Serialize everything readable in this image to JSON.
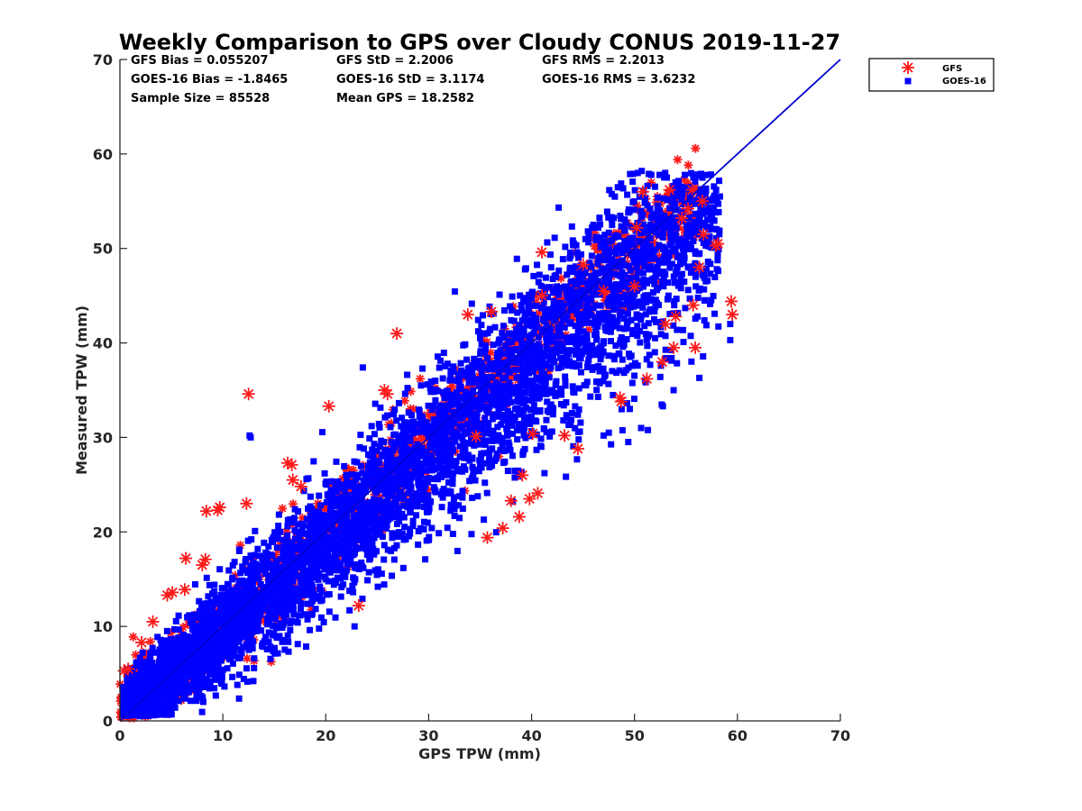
{
  "chart_data": {
    "type": "scatter",
    "title": "Weekly Comparison to GPS over Cloudy CONUS 2019-11-27",
    "xlabel": "GPS TPW (mm)",
    "ylabel": "Measured TPW (mm)",
    "xlim": [
      0,
      70
    ],
    "ylim": [
      0,
      70
    ],
    "xticks": [
      "0",
      "10",
      "20",
      "30",
      "40",
      "50",
      "60",
      "70"
    ],
    "yticks": [
      "0",
      "10",
      "20",
      "30",
      "40",
      "50",
      "60",
      "70"
    ],
    "grid": false,
    "legend_position": "outside top-right",
    "stats": [
      "GFS Bias = 0.055207",
      "GFS StD = 2.2006",
      "GFS RMS = 2.2013",
      "GOES-16 Bias = -1.8465",
      "GOES-16 StD = 3.1174",
      "GOES-16 RMS = 3.6232",
      "Sample Size = 85528",
      "Mean GPS = 18.2582"
    ],
    "reference_line": {
      "name": "1:1",
      "x": [
        0,
        70
      ],
      "y": [
        0,
        70
      ],
      "color": "#0000cc"
    },
    "series": [
      {
        "name": "GFS",
        "marker": "asterisk",
        "color": "#ff1a1a",
        "points": [
          [
            0.4,
            5.3
          ],
          [
            0.8,
            5.5
          ],
          [
            2.1,
            8.3
          ],
          [
            3.2,
            10.5
          ],
          [
            4.6,
            13.3
          ],
          [
            5.1,
            13.6
          ],
          [
            6.3,
            13.9
          ],
          [
            6.4,
            17.2
          ],
          [
            8.0,
            16.5
          ],
          [
            8.3,
            17.1
          ],
          [
            8.4,
            22.2
          ],
          [
            9.7,
            22.6
          ],
          [
            9.5,
            22.3
          ],
          [
            12.3,
            23.0
          ],
          [
            12.5,
            34.6
          ],
          [
            16.3,
            27.3
          ],
          [
            16.7,
            27.1
          ],
          [
            16.8,
            25.5
          ],
          [
            17.6,
            24.8
          ],
          [
            20.3,
            33.3
          ],
          [
            23.2,
            12.2
          ],
          [
            25.7,
            35.0
          ],
          [
            26.0,
            34.6
          ],
          [
            26.9,
            41.0
          ],
          [
            33.8,
            43.0
          ],
          [
            34.6,
            30.1
          ],
          [
            35.7,
            19.4
          ],
          [
            36.1,
            43.3
          ],
          [
            37.2,
            20.4
          ],
          [
            38.0,
            23.3
          ],
          [
            38.8,
            21.6
          ],
          [
            39.1,
            26.0
          ],
          [
            39.8,
            23.5
          ],
          [
            40.1,
            30.4
          ],
          [
            40.6,
            24.1
          ],
          [
            41.0,
            49.6
          ],
          [
            41.0,
            45.0
          ],
          [
            43.2,
            30.2
          ],
          [
            44.5,
            28.8
          ],
          [
            45.0,
            48.3
          ],
          [
            47.0,
            45.5
          ],
          [
            48.6,
            34.2
          ],
          [
            48.7,
            33.8
          ],
          [
            50.0,
            46.0
          ],
          [
            50.2,
            52.2
          ],
          [
            50.8,
            56.0
          ],
          [
            51.2,
            36.2
          ],
          [
            52.7,
            38.0
          ],
          [
            53.0,
            42.0
          ],
          [
            53.4,
            56.2
          ],
          [
            53.8,
            39.5
          ],
          [
            54.0,
            42.8
          ],
          [
            54.6,
            53.2
          ],
          [
            55.2,
            54.2
          ],
          [
            55.6,
            56.2
          ],
          [
            55.9,
            39.5
          ],
          [
            55.7,
            44.0
          ],
          [
            56.3,
            48.0
          ],
          [
            56.7,
            51.5
          ],
          [
            56.6,
            55.0
          ],
          [
            57.9,
            50.3
          ],
          [
            58.1,
            50.5
          ],
          [
            59.4,
            44.4
          ],
          [
            59.5,
            43.0
          ]
        ]
      },
      {
        "name": "GOES-16",
        "marker": "square",
        "color": "#0000ff",
        "points": [
          [
            12.6,
            30.2
          ],
          [
            12.7,
            30.0
          ],
          [
            22.8,
            10.0
          ],
          [
            23.6,
            37.4
          ],
          [
            32.4,
            37.5
          ],
          [
            35.0,
            40.5
          ],
          [
            36.3,
            43.1
          ],
          [
            39.0,
            44.0
          ],
          [
            44.0,
            35.4
          ],
          [
            47.0,
            30.2
          ],
          [
            47.5,
            30.5
          ],
          [
            46.0,
            52.5
          ],
          [
            50.7,
            58.2
          ],
          [
            52.5,
            36.4
          ],
          [
            53.3,
            45.0
          ],
          [
            53.8,
            35.0
          ],
          [
            54.1,
            55.8
          ],
          [
            55.1,
            50.5
          ],
          [
            55.7,
            57.8
          ],
          [
            56.8,
            52.5
          ],
          [
            56.3,
            36.3
          ],
          [
            58.0,
            47.8
          ],
          [
            59.3,
            42.0
          ],
          [
            59.3,
            40.3
          ]
        ],
        "cloud": {
          "description": "dense point cloud along the 1:1 line",
          "x_range": [
            0,
            58
          ],
          "y_center_offset": -1.8,
          "y_spread": 3.1,
          "sample_size": 85528
        }
      }
    ]
  }
}
